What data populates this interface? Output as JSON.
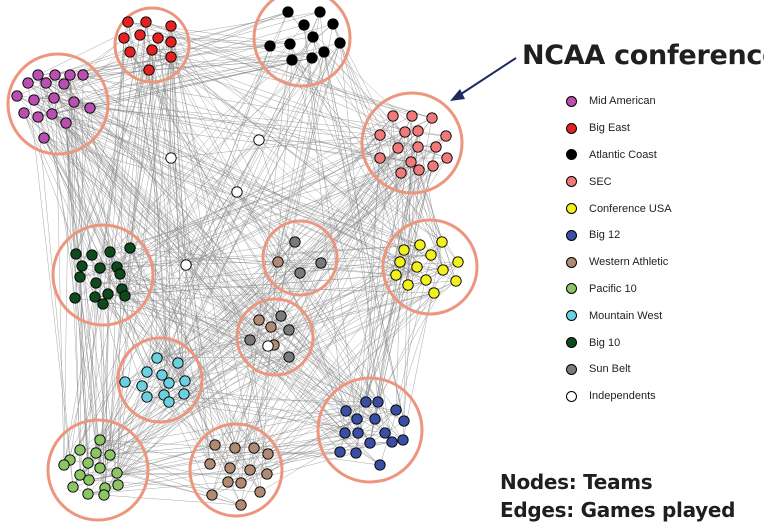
{
  "title": "NCAA conferences",
  "legend": [
    {
      "label": "Mid American",
      "color": "#b94fae"
    },
    {
      "label": "Big East",
      "color": "#e52222"
    },
    {
      "label": "Atlantic Coast",
      "color": "#000000"
    },
    {
      "label": "SEC",
      "color": "#f07a7a"
    },
    {
      "label": "Conference USA",
      "color": "#f2f21a"
    },
    {
      "label": "Big 12",
      "color": "#3a4ea3"
    },
    {
      "label": "Western Athletic",
      "color": "#b08a72"
    },
    {
      "label": "Pacific 10",
      "color": "#8cc466"
    },
    {
      "label": "Mountain West",
      "color": "#6cd0df"
    },
    {
      "label": "Big 10",
      "color": "#0e4a1c"
    },
    {
      "label": "Sun Belt",
      "color": "#7a7a7a"
    },
    {
      "label": "Independents",
      "color": "#ffffff"
    }
  ],
  "footer": {
    "nodes": "Nodes: Teams",
    "edges": "Edges: Games played"
  },
  "styles": {
    "cluster_ring_color": "#ec967e",
    "edge_color": "#8a8a8a",
    "arrow_color": "#1f2a5e"
  }
}
